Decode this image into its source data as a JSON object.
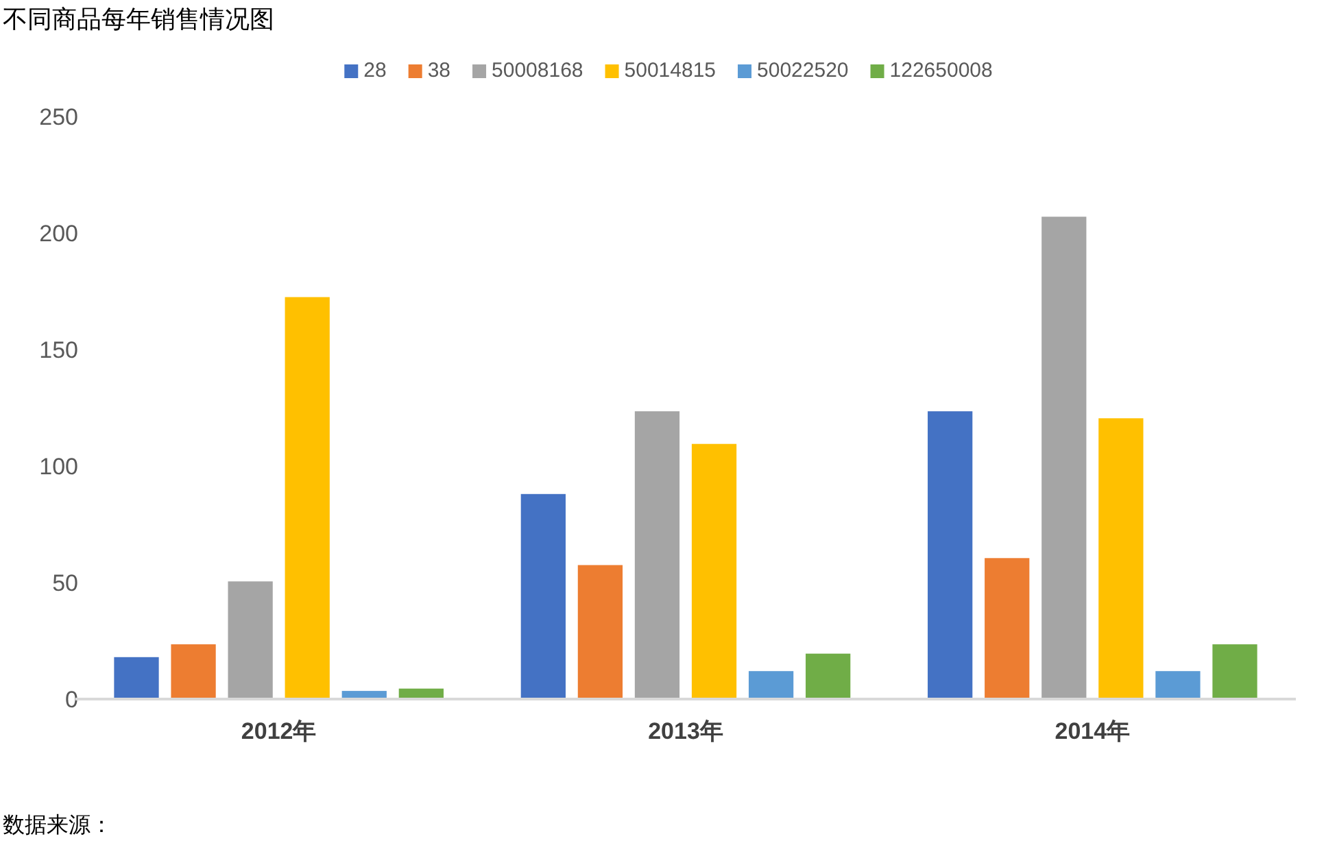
{
  "chart_data": {
    "type": "bar",
    "title": "不同商品每年销售情况图",
    "categories": [
      "2012年",
      "2013年",
      "2014年"
    ],
    "series": [
      {
        "name": "28",
        "color": "#4472c4",
        "values": [
          18,
          88,
          123.5
        ]
      },
      {
        "name": "38",
        "color": "#ed7d31",
        "values": [
          23.5,
          57.5,
          60.5
        ]
      },
      {
        "name": "50008168",
        "color": "#a5a5a5",
        "values": [
          50.5,
          123.5,
          207
        ]
      },
      {
        "name": "50014815",
        "color": "#ffc000",
        "values": [
          172.5,
          109.5,
          120.5
        ]
      },
      {
        "name": "50022520",
        "color": "#5b9bd5",
        "values": [
          3.5,
          12,
          12
        ]
      },
      {
        "name": "122650008",
        "color": "#70ad47",
        "values": [
          4.5,
          19.5,
          23.5
        ]
      }
    ],
    "ylim": [
      0,
      250
    ],
    "yticks": [
      0,
      50,
      100,
      150,
      200,
      250
    ],
    "grid": false,
    "legend": "top",
    "annotations": [
      "数据来源："
    ]
  }
}
